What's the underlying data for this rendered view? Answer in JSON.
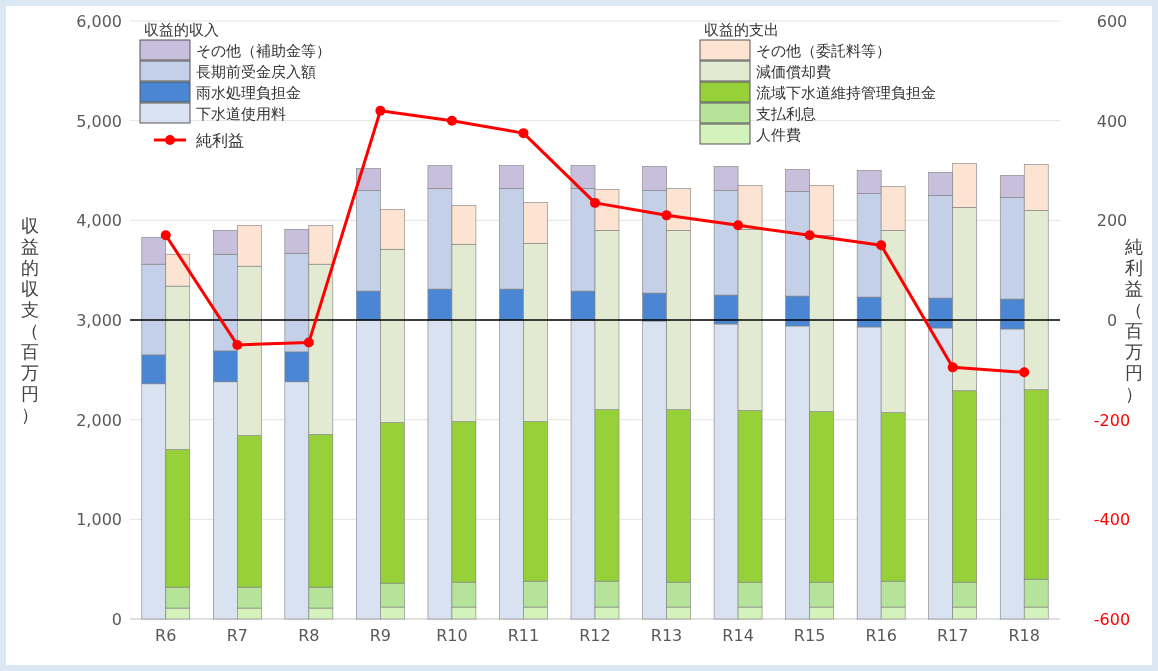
{
  "chart_data": [
    {
      "type": "bar",
      "stacked": true,
      "categories": [
        "R6",
        "R7",
        "R8",
        "R9",
        "R10",
        "R11",
        "R12",
        "R13",
        "R14",
        "R15",
        "R16",
        "R17",
        "R18"
      ],
      "ylabel": "収益的収支（百万円）",
      "y2label": "純利益（百万円）",
      "legend_title": "収益的収入",
      "ylim": [
        0,
        6000
      ],
      "yticks": [
        0,
        {
          "value": 1000,
          "label": "1,000"
        },
        {
          "value": 2000,
          "label": "2,000"
        },
        {
          "value": 3000,
          "label": "3,000"
        },
        {
          "value": 4000,
          "label": "4,000"
        },
        {
          "value": 5000,
          "label": "5,000"
        },
        {
          "value": 6000,
          "label": "6,000"
        }
      ],
      "y2lim": [
        -600,
        600
      ],
      "y2ticks": [
        -600,
        -400,
        -200,
        0,
        200,
        400,
        600
      ],
      "grid": "y",
      "legend": "top left",
      "marker": "circle",
      "ref_lines": [
        {
          "axis": "y2",
          "value": 0,
          "color": "#000000"
        }
      ],
      "series": [
        {
          "name": "下水道使用料",
          "color": "#d9e2f1",
          "values": [
            2360,
            2380,
            2380,
            3000,
            3000,
            3000,
            3000,
            2990,
            2960,
            2940,
            2930,
            2920,
            2910
          ]
        },
        {
          "name": "雨水処理負担金",
          "color": "#4a86d4",
          "values": [
            290,
            310,
            300,
            290,
            310,
            310,
            290,
            280,
            290,
            300,
            300,
            300,
            300
          ]
        },
        {
          "name": "長期前受金戻入額",
          "color": "#c3d0e8",
          "values": [
            910,
            970,
            990,
            1010,
            1010,
            1010,
            1030,
            1030,
            1050,
            1050,
            1040,
            1030,
            1020
          ]
        },
        {
          "name": "その他（補助金等）",
          "color": "#c8bfdc",
          "values": [
            270,
            240,
            240,
            220,
            230,
            230,
            230,
            240,
            240,
            220,
            230,
            230,
            220
          ]
        },
        {
          "name": "純利益",
          "type": "line",
          "axis": "y2",
          "color": "#ff0000",
          "values": [
            170,
            -50,
            -45,
            420,
            400,
            375,
            235,
            210,
            190,
            170,
            150,
            -95,
            -105
          ]
        }
      ]
    },
    {
      "type": "bar",
      "stacked": true,
      "categories": [
        null,
        null,
        null,
        null,
        null,
        null,
        null,
        null,
        null,
        null,
        null,
        null,
        null
      ],
      "legend_title": "収益的支出",
      "ylim": [
        0,
        6000
      ],
      "tick_labels": false,
      "legend": "top",
      "series": [
        {
          "name": "人件費",
          "color": "#d4f2bc",
          "values": [
            110,
            110,
            110,
            120,
            120,
            120,
            120,
            120,
            120,
            120,
            120,
            120,
            120
          ]
        },
        {
          "name": "支払利息",
          "color": "#b5e39a",
          "values": [
            210,
            210,
            210,
            240,
            250,
            260,
            260,
            250,
            250,
            250,
            260,
            250,
            280
          ]
        },
        {
          "name": "流域下水道維持管理負担金",
          "color": "#96d13a",
          "values": [
            1380,
            1520,
            1530,
            1610,
            1610,
            1600,
            1720,
            1730,
            1720,
            1710,
            1690,
            1920,
            1900
          ]
        },
        {
          "name": "減価償却費",
          "color": "#e3ead2",
          "values": [
            1640,
            1700,
            1710,
            1740,
            1780,
            1790,
            1800,
            1800,
            1820,
            1770,
            1830,
            1840,
            1800
          ]
        },
        {
          "name": "その他（委託料等）",
          "color": "#fde4d2",
          "values": [
            320,
            410,
            390,
            400,
            390,
            410,
            410,
            420,
            440,
            500,
            440,
            440,
            460
          ]
        }
      ]
    }
  ]
}
